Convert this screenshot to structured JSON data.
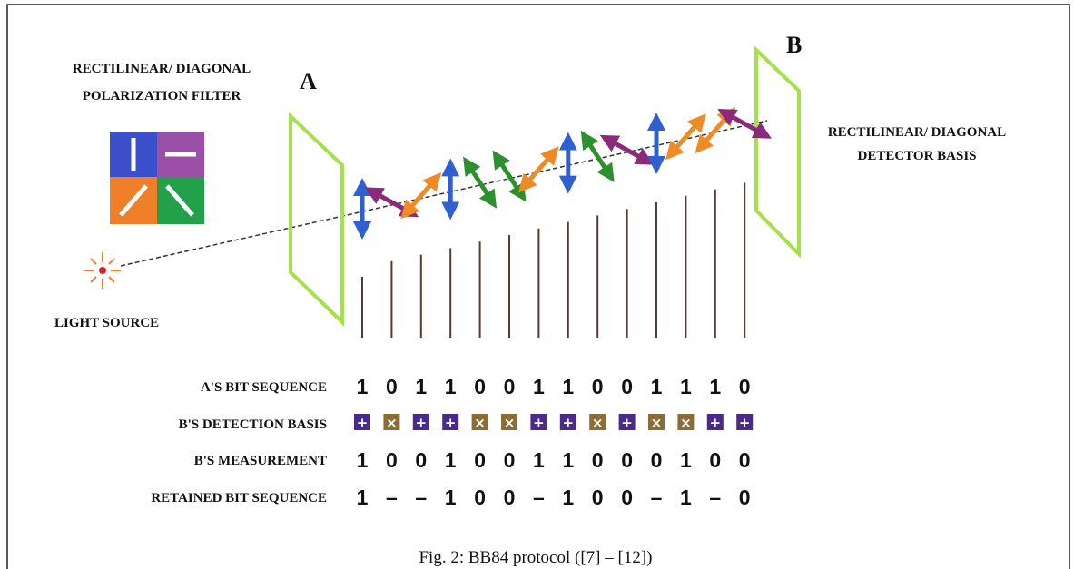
{
  "filter_label": [
    "RECTILINEAR/ DIAGONAL",
    "POLARIZATION FILTER"
  ],
  "sender": "A",
  "receiver": "B",
  "detector_label": [
    "RECTILINEAR/ DIAGONAL",
    "DETECTOR BASIS"
  ],
  "light_source": "LIGHT SOURCE",
  "rows": [
    {
      "label": "A'S BIT SEQUENCE",
      "values": [
        "1",
        "0",
        "1",
        "1",
        "0",
        "0",
        "1",
        "1",
        "0",
        "0",
        "1",
        "1",
        "1",
        "0"
      ]
    },
    {
      "label": "B'S DETECTION BASIS",
      "values": [
        {
          "symbol": "+",
          "color": "#4a2a8a"
        },
        {
          "symbol": "×",
          "color": "#8c6d35"
        },
        {
          "symbol": "+",
          "color": "#4a2a8a"
        },
        {
          "symbol": "+",
          "color": "#4a2a8a"
        },
        {
          "symbol": "×",
          "color": "#8c6d35"
        },
        {
          "symbol": "×",
          "color": "#8c6d35"
        },
        {
          "symbol": "+",
          "color": "#4a2a8a"
        },
        {
          "symbol": "+",
          "color": "#4a2a8a"
        },
        {
          "symbol": "×",
          "color": "#8c6d35"
        },
        {
          "symbol": "+",
          "color": "#4a2a8a"
        },
        {
          "symbol": "×",
          "color": "#8c6d35"
        },
        {
          "symbol": "×",
          "color": "#8c6d35"
        },
        {
          "symbol": "+",
          "color": "#4a2a8a"
        },
        {
          "symbol": "+",
          "color": "#4a2a8a"
        }
      ]
    },
    {
      "label": "B'S MEASUREMENT",
      "values": [
        "1",
        "0",
        "0",
        "1",
        "0",
        "0",
        "1",
        "1",
        "0",
        "0",
        "0",
        "1",
        "0",
        "0"
      ]
    },
    {
      "label": "RETAINED BIT SEQUENCE",
      "values": [
        "1",
        "–",
        "–",
        "1",
        "0",
        "0",
        "–",
        "1",
        "0",
        "0",
        "–",
        "1",
        "–",
        "0"
      ]
    }
  ],
  "caption": "Fig. 2: BB84 protocol ([7] – [12])"
}
